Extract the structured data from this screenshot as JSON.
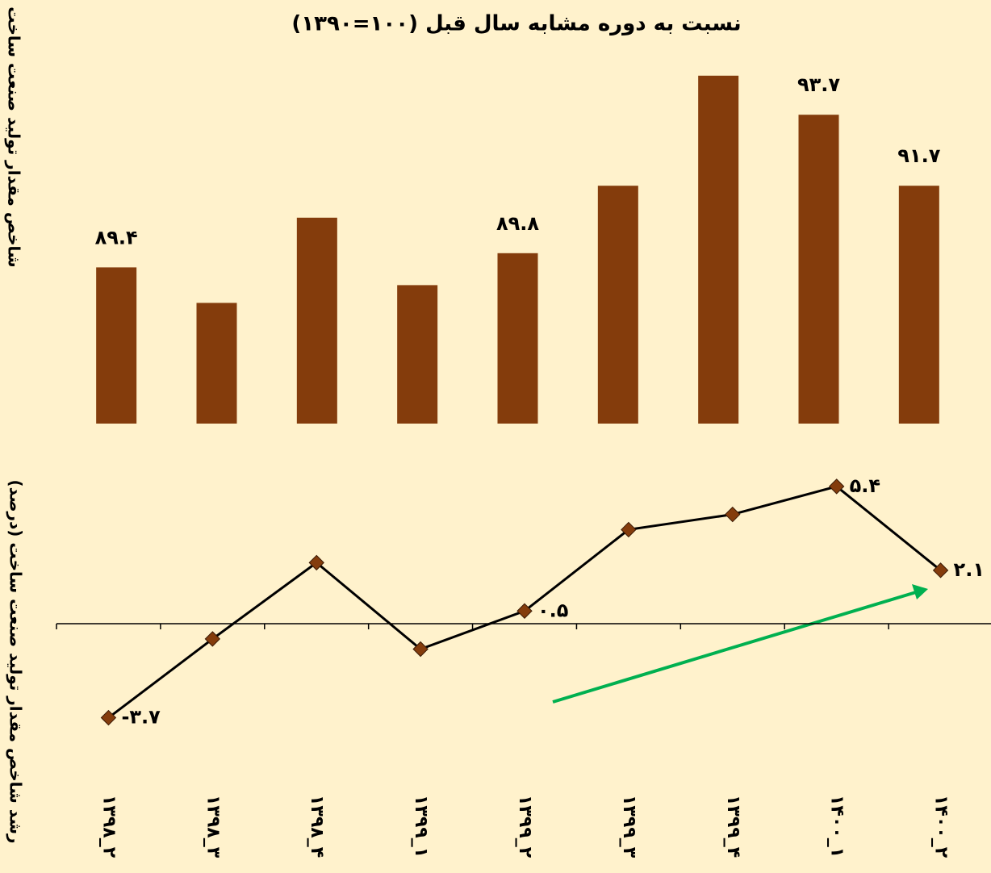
{
  "chart_data": [
    {
      "type": "bar",
      "title": "نسبت به دوره مشابه سال قبل (۱۰۰=۱۳۹۰)",
      "y_label": "شاخص مقدار تولید صنعت ساخت",
      "categories": [
        "۱۳۹۸_۲",
        "۱۳۹۸_۳",
        "۱۳۹۸_۴",
        "۱۳۹۹_۱",
        "۱۳۹۹_۲",
        "۱۳۹۹_۳",
        "۱۳۹۹_۴",
        "۱۴۰۰_۱",
        "۱۴۰۰_۲"
      ],
      "values": [
        89.4,
        88.4,
        90.8,
        88.9,
        89.8,
        91.7,
        94.8,
        93.7,
        91.7
      ],
      "value_labels": [
        "۸۹.۴",
        null,
        null,
        null,
        "۸۹.۸",
        null,
        null,
        "۹۳.۷",
        "۹۱.۷"
      ],
      "color": "#843c0c",
      "ylim": [
        85,
        96
      ]
    },
    {
      "type": "line",
      "y_label": "رشد شاخص مقدار تولید صنعت ساخت (درصد)",
      "categories": [
        "۱۳۹۸_۲",
        "۱۳۹۸_۳",
        "۱۳۹۸_۴",
        "۱۳۹۹_۱",
        "۱۳۹۹_۲",
        "۱۳۹۹_۳",
        "۱۳۹۹_۴",
        "۱۴۰۰_۱",
        "۱۴۰۰_۲"
      ],
      "values": [
        -3.7,
        -0.6,
        2.4,
        -1.0,
        0.5,
        3.7,
        4.3,
        5.4,
        2.1
      ],
      "value_labels": [
        "-۳.۷",
        null,
        null,
        null,
        "۰.۵",
        null,
        null,
        "۵.۴",
        "۲.۱"
      ],
      "color": "#000000",
      "marker_color": "#843c0c",
      "ylim": [
        -5,
        6
      ]
    }
  ]
}
